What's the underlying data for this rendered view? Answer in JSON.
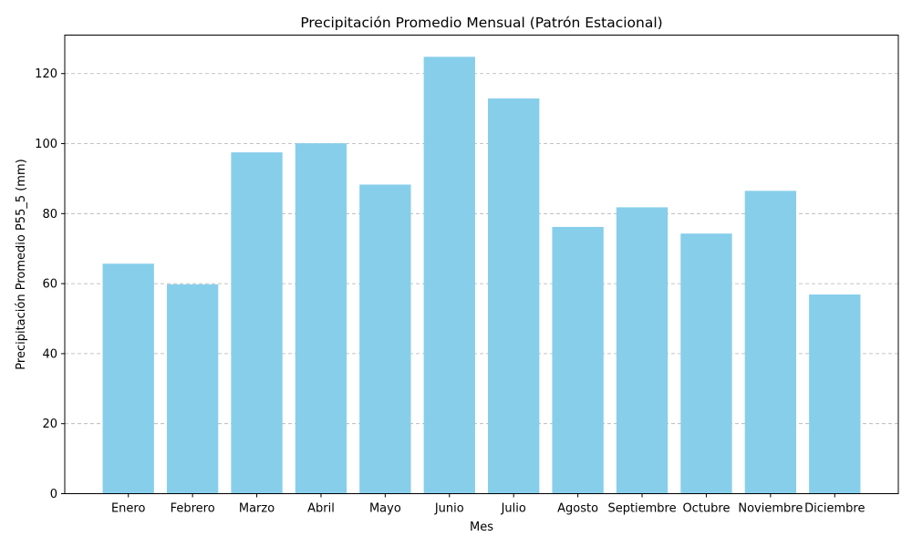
{
  "chart_data": {
    "type": "bar",
    "title": "Precipitación Promedio Mensual (Patrón Estacional)",
    "xlabel": "Mes",
    "ylabel": "Precipitación Promedio P55_5 (mm)",
    "categories": [
      "Enero",
      "Febrero",
      "Marzo",
      "Abril",
      "Mayo",
      "Junio",
      "Julio",
      "Agosto",
      "Septiembre",
      "Octubre",
      "Noviembre",
      "Diciembre"
    ],
    "values": [
      65.7,
      59.8,
      97.5,
      100.1,
      88.3,
      124.8,
      112.9,
      76.2,
      81.8,
      74.3,
      86.5,
      56.9
    ],
    "ylim": [
      0,
      131
    ],
    "yticks": [
      0,
      20,
      40,
      60,
      80,
      100,
      120
    ],
    "grid": "y-dashed",
    "bar_color": "#87CEEB"
  }
}
